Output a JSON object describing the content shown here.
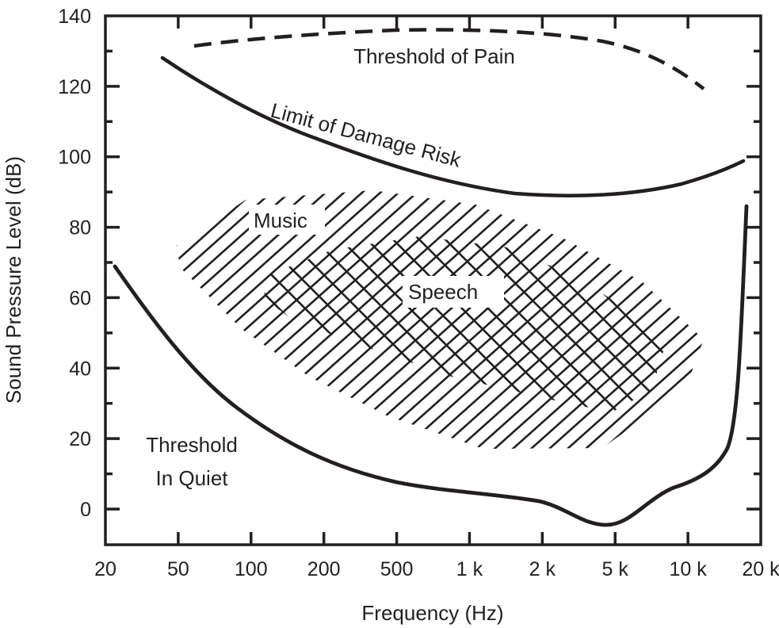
{
  "chart_data": {
    "type": "line",
    "title": "",
    "xlabel": "Frequency (Hz)",
    "ylabel": "Sound Pressure Level (dB)",
    "x_ticks": [
      "20",
      "50",
      "100",
      "200",
      "500",
      "1 k",
      "2 k",
      "5 k",
      "10 k",
      "20 k"
    ],
    "x_tick_values": [
      20,
      50,
      100,
      200,
      500,
      1000,
      2000,
      5000,
      10000,
      20000
    ],
    "y_ticks": [
      "140",
      "120",
      "100",
      "80",
      "60",
      "40",
      "20",
      "0"
    ],
    "y_tick_values": [
      140,
      120,
      100,
      80,
      60,
      40,
      20,
      0
    ],
    "ylim": [
      -10,
      140
    ],
    "xlim": [
      20,
      20000
    ],
    "grid": false,
    "series": [
      {
        "name": "Threshold of Pain",
        "style": "dashed",
        "x": [
          60,
          100,
          200,
          500,
          1000,
          2000,
          5000,
          10000,
          12000
        ],
        "y": [
          132,
          134,
          135,
          136,
          136,
          135,
          132,
          124,
          120
        ]
      },
      {
        "name": "Limit of Damage Risk",
        "style": "solid",
        "x": [
          45,
          100,
          200,
          500,
          1000,
          2000,
          5000,
          10000,
          18000
        ],
        "y": [
          128,
          116,
          107,
          98,
          93,
          90,
          89,
          92,
          99
        ]
      },
      {
        "name": "Threshold In Quiet",
        "style": "solid",
        "x": [
          22,
          50,
          100,
          200,
          500,
          1000,
          2000,
          3000,
          4000,
          5000,
          10000,
          15000,
          17000,
          18000
        ],
        "y": [
          69,
          45,
          29,
          16,
          7,
          4,
          2,
          -2,
          -5,
          -3,
          7,
          20,
          50,
          86
        ]
      }
    ],
    "regions": [
      {
        "name": "Music",
        "hatch": "single diagonal",
        "freq_range_hz": [
          40,
          12000
        ],
        "level_range_db": [
          20,
          90
        ]
      },
      {
        "name": "Speech",
        "hatch": "cross",
        "freq_range_hz": [
          100,
          8000
        ],
        "level_range_db": [
          33,
          73
        ]
      }
    ],
    "annotations": [
      "Threshold of Pain",
      "Limit of Damage Risk",
      "Music",
      "Speech",
      "Threshold",
      "In Quiet"
    ]
  },
  "labels": {
    "pain": "Threshold of Pain",
    "damage": "Limit of Damage Risk",
    "music": "Music",
    "speech": "Speech",
    "quiet_line1": "Threshold",
    "quiet_line2": "In Quiet"
  },
  "colors": {
    "ink": "#231f20",
    "background": "#ffffff"
  }
}
